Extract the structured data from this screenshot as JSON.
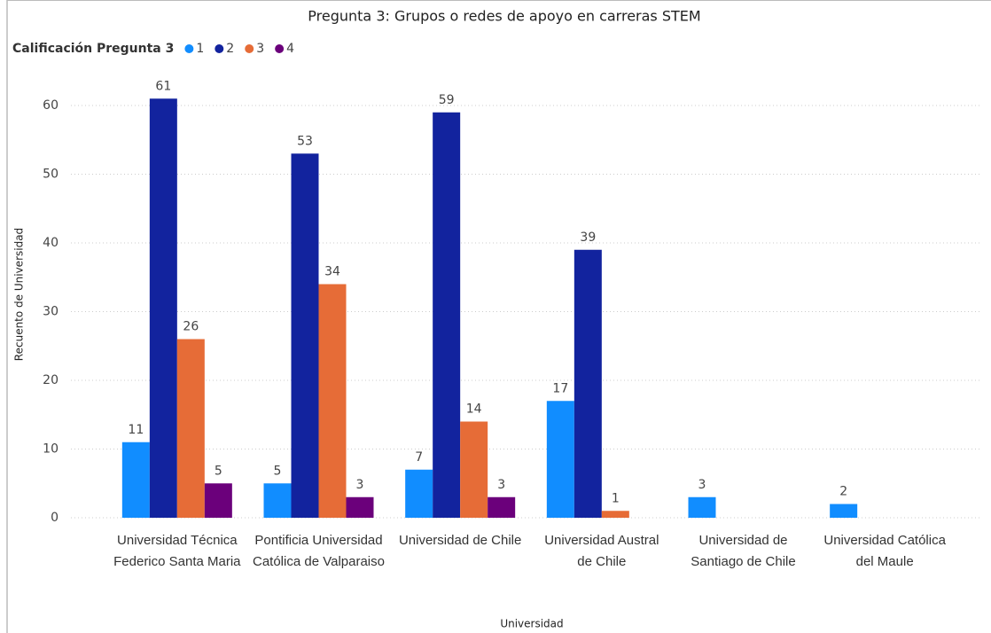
{
  "chart_data": {
    "type": "bar",
    "title": "Pregunta 3: Grupos o redes de apoyo en carreras STEM",
    "legend_title": "Calificación Pregunta 3",
    "xlabel": "Universidad",
    "ylabel": "Recuento de Universidad",
    "categories": [
      "Universidad Técnica Federico Santa Maria",
      "Pontificia Universidad Católica de Valparaiso",
      "Universidad de Chile",
      "Universidad Austral de Chile",
      "Universidad de Santiago de Chile",
      "Universidad Católica del Maule"
    ],
    "series": [
      {
        "name": "1",
        "color": "#118DFF",
        "values": [
          11,
          5,
          7,
          17,
          3,
          2
        ]
      },
      {
        "name": "2",
        "color": "#12239E",
        "values": [
          61,
          53,
          59,
          39,
          null,
          null
        ]
      },
      {
        "name": "3",
        "color": "#E66C37",
        "values": [
          26,
          34,
          14,
          1,
          null,
          null
        ]
      },
      {
        "name": "4",
        "color": "#6B007B",
        "values": [
          5,
          3,
          3,
          null,
          null,
          null
        ]
      }
    ],
    "ylim": [
      0,
      65
    ],
    "yticks": [
      0,
      10,
      20,
      30,
      40,
      50,
      60
    ],
    "grid": true
  }
}
